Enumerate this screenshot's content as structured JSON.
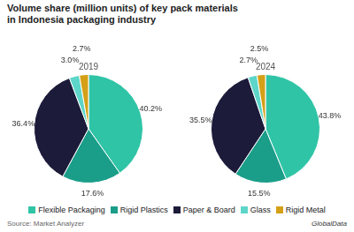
{
  "title": "Volume share (million units) of key pack materials",
  "subtitle": "in Indonesia packaging industry",
  "annotations": [
    "Source: Market Analyzer",
    "GlobalData"
  ],
  "legend": "bottom",
  "chart_data": [
    {
      "type": "pie",
      "title": "2019",
      "categories": [
        "Flexible Packaging",
        "Rigid Plastics",
        "Paper & Board",
        "Glass",
        "Rigid Metal"
      ],
      "values": [
        40.2,
        17.6,
        36.4,
        3.0,
        2.7
      ],
      "value_labels": [
        "40.2%",
        "17.6%",
        "36.4%",
        "3.0%",
        "2.7%"
      ],
      "colors": [
        "#2ec4a5",
        "#1a9e8a",
        "#1c1c3a",
        "#5dd5c8",
        "#d4a017"
      ],
      "data_labels": true
    },
    {
      "type": "pie",
      "title": "2024",
      "categories": [
        "Flexible Packaging",
        "Rigid Plastics",
        "Paper & Board",
        "Glass",
        "Rigid Metal"
      ],
      "values": [
        43.8,
        15.5,
        35.5,
        2.7,
        2.5
      ],
      "value_labels": [
        "43.8%",
        "15.5%",
        "35.5%",
        "2.7%",
        "2.5%"
      ],
      "colors": [
        "#2ec4a5",
        "#1a9e8a",
        "#1c1c3a",
        "#5dd5c8",
        "#d4a017"
      ],
      "data_labels": true
    }
  ]
}
